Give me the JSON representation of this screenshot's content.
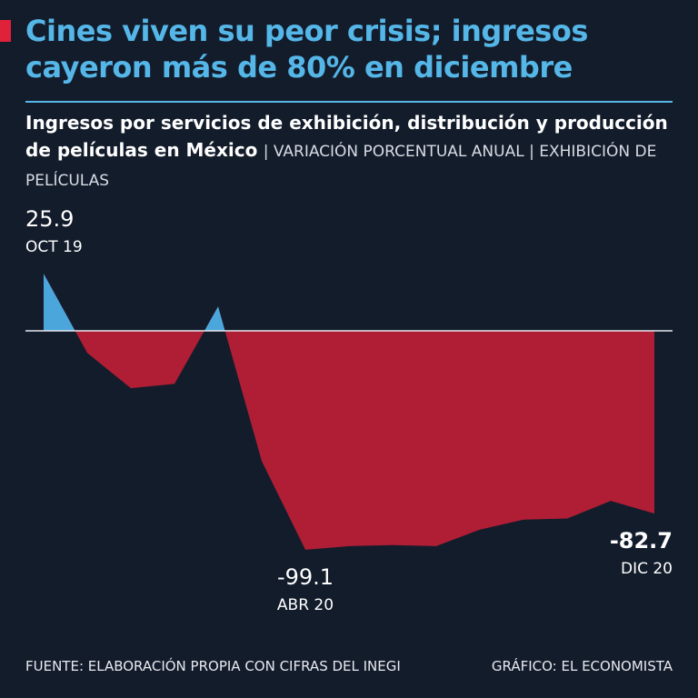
{
  "chart_data": {
    "type": "area",
    "title": "Cines viven su peor crisis; ingresos cayeron más de 80% en diciembre",
    "subtitle": "Ingresos por servicios de exhibición, distribución y producción de películas en México",
    "subtitle_note": "| VARIACIÓN PORCENTUAL ANUAL | EXHIBICIÓN DE PELÍCULAS",
    "categories": [
      "OCT 19",
      null,
      null,
      null,
      null,
      null,
      "ABR 20",
      null,
      null,
      null,
      null,
      null,
      null,
      null,
      "DIC 20"
    ],
    "values": [
      25.9,
      -10,
      -26,
      -24,
      11,
      -59,
      -99.1,
      -97.5,
      -97,
      -97.5,
      -90,
      -85.5,
      -85,
      -77,
      -82.7
    ],
    "color": "#b01e35",
    "positive_color": "#4ba6dc",
    "ylim": [
      -110,
      40
    ],
    "source": "FUENTE: ELABORACIÓN PROPIA CON CIFRAS DEL INEGI",
    "credit": "GRÁFICO: EL ECONOMISTA"
  }
}
